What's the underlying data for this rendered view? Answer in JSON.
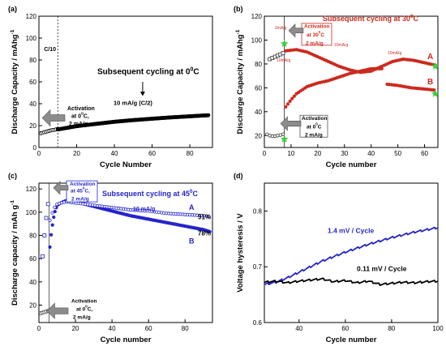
{
  "figure": {
    "panels": [
      "(a)",
      "(b)",
      "(c)",
      "(d)"
    ]
  },
  "chart_data": [
    {
      "panel": "(a)",
      "type": "scatter",
      "xlabel": "Cycle Number",
      "ylabel": "Discharge Capacity / mAhg",
      "ylabel_sup": "-1",
      "xlim": [
        0,
        92
      ],
      "ylim": [
        0,
        120
      ],
      "xticks": [
        0,
        20,
        40,
        60,
        80
      ],
      "yticks": [
        0,
        20,
        40,
        60,
        80,
        100,
        120
      ],
      "grid": false,
      "annotations": {
        "c10": "C/10",
        "title": "Subsequent cycling at 0",
        "title_unit": "C",
        "deg": "0",
        "rate": "10 mA/g (C/2)",
        "activation": [
          "Activation",
          "at 0",
          "C,",
          "2 mA/g"
        ]
      },
      "series": [
        {
          "marker": "open-circle",
          "x": [
            1,
            2,
            3,
            4,
            5,
            6,
            7,
            8,
            9,
            10
          ],
          "y": [
            13,
            13.5,
            14,
            14.5,
            15,
            15.5,
            16,
            16,
            16.5,
            17
          ]
        },
        {
          "marker": "filled-circle",
          "x": [
            10,
            20,
            30,
            40,
            50,
            60,
            70,
            80,
            90
          ],
          "y": [
            16.5,
            19.5,
            21.5,
            23.5,
            25,
            26.3,
            27.5,
            28.5,
            29.5
          ]
        }
      ]
    },
    {
      "panel": "(b)",
      "type": "scatter",
      "xlabel": "Cycle number",
      "ylabel": "Discharge Capacity / mAhg",
      "ylabel_sup": "-1",
      "xlim": [
        0,
        65
      ],
      "ylim": [
        10,
        120
      ],
      "xticks": [
        0,
        10,
        20,
        30,
        40,
        50,
        60
      ],
      "yticks": [
        20,
        40,
        60,
        80,
        100,
        120
      ],
      "grid": false,
      "colors": {
        "series": "#cc2a1e",
        "open": "#333333",
        "star": "#3ecf3e"
      },
      "annotations": {
        "title": "Subsequent cycling at 30",
        "title_unit": "C",
        "deg": "0",
        "top_activation": [
          "Activation",
          "at 30",
          "C",
          "2 mA/g"
        ],
        "bottom_activation": [
          "Activation",
          "at 0",
          "C",
          "2 mA/g"
        ],
        "rates": [
          "2mA/g",
          "10mA/g",
          "10mA/g",
          "10mA/g"
        ],
        "series_labels": [
          "A",
          "B"
        ]
      },
      "series": [
        {
          "name": "A",
          "x": [
            8,
            12,
            16,
            20,
            24,
            28,
            32,
            36,
            40,
            44,
            48,
            52,
            56,
            60,
            64
          ],
          "y": [
            91,
            92,
            90,
            86,
            82,
            78,
            75,
            73,
            74,
            78,
            82,
            84,
            83,
            81,
            79
          ]
        },
        {
          "name": "B",
          "x": [
            8,
            10,
            12,
            14,
            16,
            20,
            24,
            28,
            32,
            36,
            40,
            44,
            46,
            50,
            55,
            60,
            64
          ],
          "y": [
            44,
            50,
            55,
            58,
            61,
            64,
            66,
            69,
            72,
            74,
            76,
            76,
            63,
            62,
            60,
            59,
            58
          ]
        },
        {
          "name": "2mA/g",
          "marker": "open-square",
          "x": [
            2,
            3,
            4,
            5,
            6,
            7
          ],
          "y": [
            84,
            85,
            86,
            87,
            88,
            89
          ]
        },
        {
          "name": "activation-0C",
          "marker": "open-circle",
          "x": [
            1,
            2,
            3,
            4,
            5,
            6,
            7
          ],
          "y": [
            21,
            20,
            19.5,
            19.5,
            20,
            20.5,
            21
          ]
        }
      ]
    },
    {
      "panel": "(c)",
      "type": "scatter",
      "xlabel": "Cycle number",
      "ylabel": "Discharge capacity / mAh g",
      "ylabel_sup": "-1",
      "xlim": [
        0,
        95
      ],
      "ylim": [
        5,
        125
      ],
      "xticks": [
        0,
        20,
        40,
        60,
        80
      ],
      "yticks": [
        20,
        40,
        60,
        80,
        100,
        120
      ],
      "grid": false,
      "colors": {
        "series": "#2424cc"
      },
      "annotations": {
        "title": "Subsequent cycling at 45",
        "title_unit": "C",
        "deg": "0",
        "rate": "10 mA/g",
        "top_activation": [
          "Activation",
          "at 45",
          "C,",
          "2 mA/g"
        ],
        "bottom_activation": [
          "Activation",
          "at 0",
          "C,",
          "2 mA/g"
        ],
        "series_labels": [
          "A",
          "B"
        ],
        "retention_A": "91%",
        "retention_B": "78%"
      },
      "series": [
        {
          "name": "A",
          "marker": "open-circle",
          "x": [
            6,
            8,
            10,
            12,
            15,
            20,
            30,
            40,
            50,
            60,
            70,
            80,
            90,
            94
          ],
          "y": [
            93,
            103,
            107,
            108,
            109,
            108,
            106,
            104,
            102,
            101,
            99,
            98,
            97,
            96
          ]
        },
        {
          "name": "B",
          "marker": "filled-circle",
          "x": [
            6,
            7,
            8,
            9,
            10,
            12,
            15,
            20,
            30,
            40,
            50,
            60,
            70,
            80,
            90,
            94
          ],
          "y": [
            70,
            85,
            95,
            102,
            106,
            108,
            110,
            109,
            105,
            101,
            97,
            94,
            91,
            88,
            85,
            83
          ]
        },
        {
          "name": "activation-45C",
          "marker": "open-square",
          "x": [
            2,
            3,
            4,
            5
          ],
          "y": [
            62,
            80,
            95,
            107
          ]
        },
        {
          "name": "activation-0C",
          "marker": "open-circle",
          "x": [
            1,
            2,
            3,
            4,
            5
          ],
          "y": [
            13,
            13.5,
            14,
            14.5,
            15
          ]
        }
      ]
    },
    {
      "panel": "(d)",
      "type": "line",
      "xlabel": "Cycle number",
      "ylabel": "Voltage hysteresis / V",
      "xlim": [
        25,
        100
      ],
      "ylim": [
        0.6,
        0.85
      ],
      "xticks": [
        40,
        60,
        80,
        100
      ],
      "yticks": [
        0.6,
        0.7,
        0.8
      ],
      "grid": false,
      "colors": {
        "blue": "#2424cc",
        "black": "#000000"
      },
      "annotations": {
        "blue_rate": "1.4 mV / Cycle",
        "black_rate": "0.11 mV / Cycle"
      },
      "series": [
        {
          "name": "blue",
          "x": [
            25,
            30,
            35,
            40,
            45,
            50,
            55,
            60,
            65,
            70,
            75,
            80,
            85,
            90,
            95,
            100
          ],
          "y": [
            0.668,
            0.672,
            0.68,
            0.69,
            0.7,
            0.71,
            0.718,
            0.726,
            0.733,
            0.74,
            0.746,
            0.752,
            0.757,
            0.762,
            0.766,
            0.77
          ]
        },
        {
          "name": "black",
          "x": [
            25,
            30,
            35,
            40,
            45,
            50,
            55,
            60,
            65,
            70,
            75,
            80,
            85,
            90,
            95,
            100
          ],
          "y": [
            0.672,
            0.674,
            0.671,
            0.674,
            0.676,
            0.678,
            0.673,
            0.675,
            0.671,
            0.674,
            0.668,
            0.67,
            0.672,
            0.671,
            0.673,
            0.674
          ]
        }
      ]
    }
  ]
}
